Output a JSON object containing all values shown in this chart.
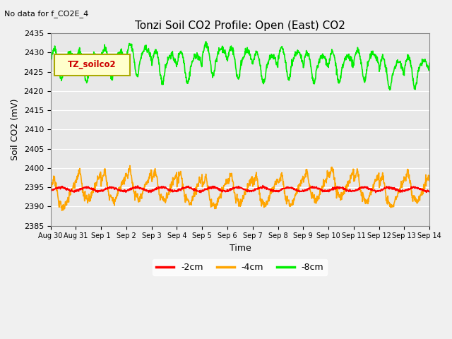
{
  "title": "Tonzi Soil CO2 Profile: Open (East) CO2",
  "note": "No data for f_CO2E_4",
  "ylabel": "Soil CO2 (mV)",
  "xlabel": "Time",
  "ylim": [
    2385,
    2435
  ],
  "yticks": [
    2385,
    2390,
    2395,
    2400,
    2405,
    2410,
    2415,
    2420,
    2425,
    2430,
    2435
  ],
  "legend_label": "TZ_soilco2",
  "legend_items": [
    "-2cm",
    "-4cm",
    "-8cm"
  ],
  "legend_colors": [
    "#ff0000",
    "#ffa500",
    "#00ee00"
  ],
  "x_tick_labels": [
    "Aug 30",
    "Aug 31",
    "Sep 1",
    "Sep 2",
    "Sep 3",
    "Sep 4",
    "Sep 5",
    "Sep 6",
    "Sep 7",
    "Sep 8",
    "Sep 9",
    "Sep 10",
    "Sep 11",
    "Sep 12",
    "Sep 13",
    "Sep 14"
  ],
  "bg_color": "#e8e8e8",
  "plot_bg_color": "#e8e8e8",
  "grid_color": "#ffffff",
  "fig_color": "#f0f0f0"
}
